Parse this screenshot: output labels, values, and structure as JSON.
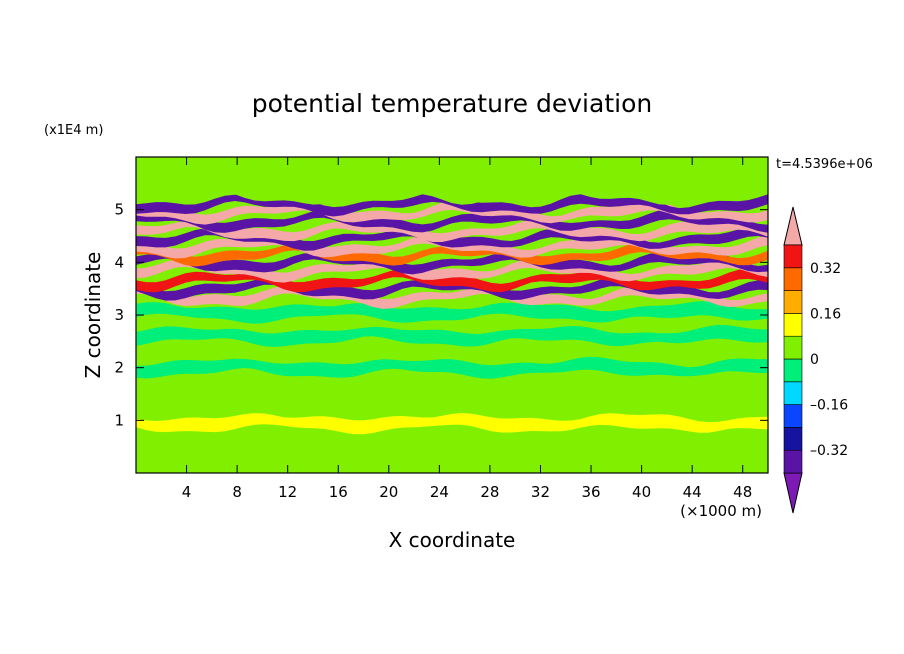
{
  "chart_data": {
    "type": "heatmap",
    "title": "potential temperature deviation",
    "xlabel": "X coordinate",
    "ylabel": "Z coordinate",
    "x_unit": "(×1000 m)",
    "y_unit": "(x1E4 m)",
    "time_label": "t=4.5396e+06",
    "xlim": [
      0,
      50
    ],
    "ylim": [
      0,
      6
    ],
    "xticks": [
      4,
      8,
      12,
      16,
      20,
      24,
      28,
      32,
      36,
      40,
      44,
      48
    ],
    "yticks": [
      1,
      2,
      3,
      4,
      5
    ],
    "colorbar": {
      "levels": [
        -0.48,
        -0.4,
        -0.32,
        -0.24,
        -0.16,
        -0.08,
        0,
        0.08,
        0.16,
        0.24,
        0.32,
        0.4
      ],
      "colors": [
        "#7d1ab5",
        "#5a14a5",
        "#1414a0",
        "#0a46ff",
        "#00d8ff",
        "#00ee7a",
        "#80f000",
        "#ffff00",
        "#ffae00",
        "#ff6a00",
        "#f01414",
        "#f4a8a8"
      ],
      "tick_labels": [
        "0.32",
        "0.16",
        "0",
        "–0.16",
        "–0.32"
      ],
      "tick_values": [
        0.32,
        0.16,
        0,
        -0.16,
        -0.32
      ]
    },
    "bands": [
      {
        "z": 0.95,
        "value": 0.08
      },
      {
        "z": 2.0,
        "value": -0.04
      },
      {
        "z": 2.6,
        "value": -0.04
      },
      {
        "z": 3.05,
        "value": -0.03
      },
      {
        "z": 3.35,
        "value": 0.44
      },
      {
        "z": 3.5,
        "value": -0.4
      },
      {
        "z": 3.65,
        "value": 0.32
      },
      {
        "z": 3.85,
        "value": 0.44
      },
      {
        "z": 4.0,
        "value": -0.36
      },
      {
        "z": 4.15,
        "value": 0.24
      },
      {
        "z": 4.3,
        "value": 0.44
      },
      {
        "z": 4.45,
        "value": -0.36
      },
      {
        "z": 4.6,
        "value": 0.44
      },
      {
        "z": 4.78,
        "value": -0.4
      },
      {
        "z": 4.95,
        "value": 0.44
      },
      {
        "z": 5.1,
        "value": -0.36
      },
      {
        "z": 5.3,
        "value": 0.0
      }
    ],
    "background_value": 0.02
  }
}
